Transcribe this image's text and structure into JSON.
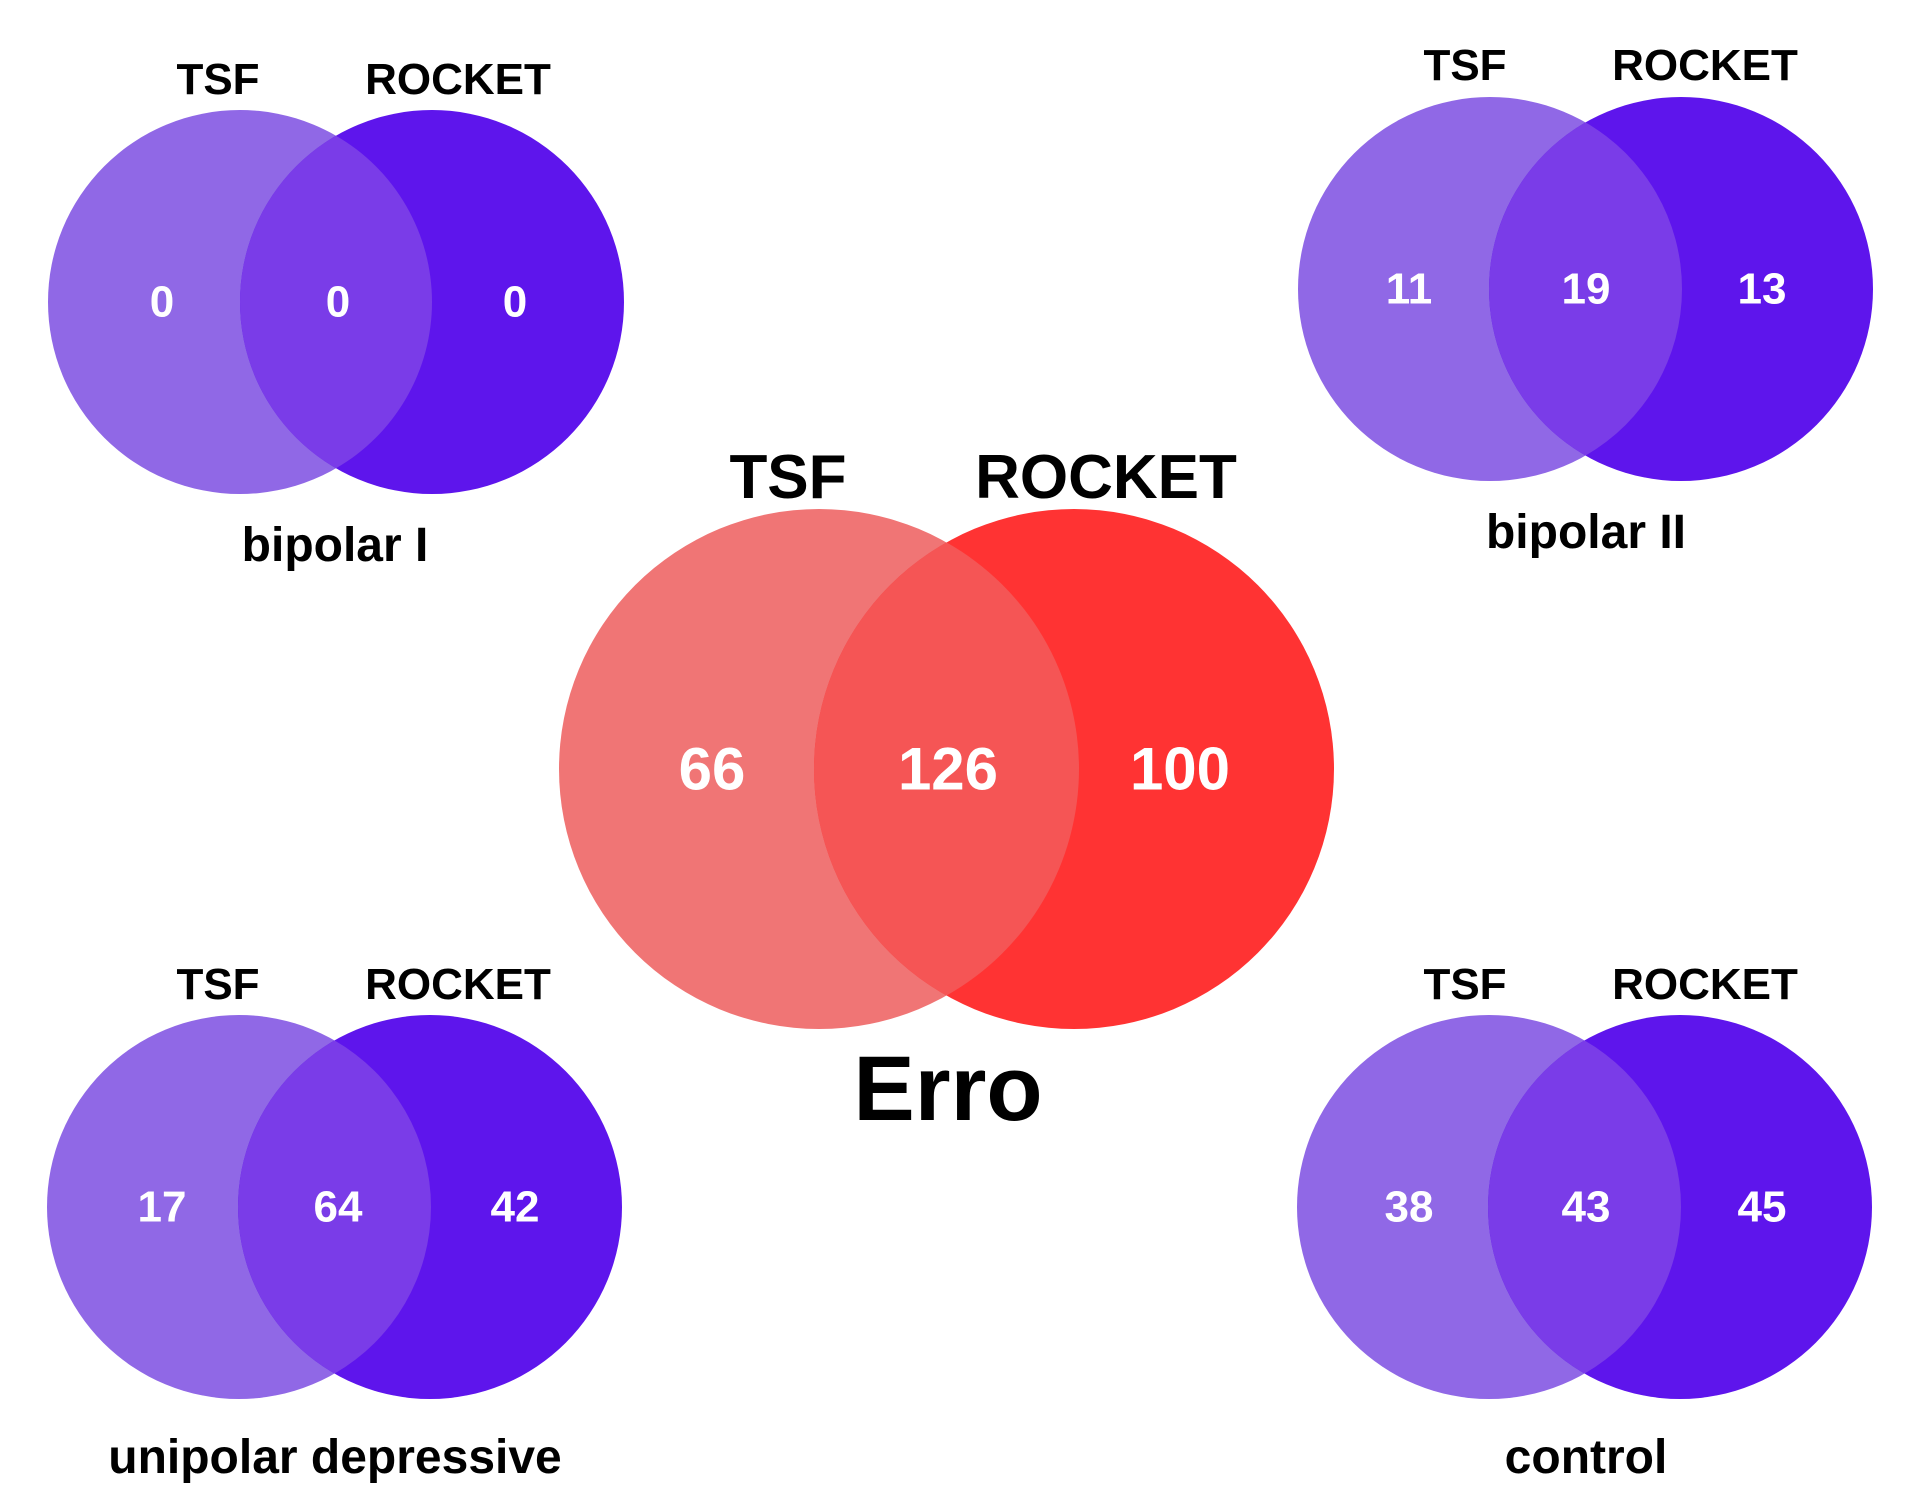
{
  "diagrams": [
    {
      "id": "bipolar-1",
      "title": "bipolar I",
      "set_a": "TSF",
      "set_b": "ROCKET",
      "only_a": "0",
      "both": "0",
      "only_b": "0",
      "colors": {
        "a": "#9068e6",
        "overlap": "#7a3ce8",
        "b": "#5e15ec"
      }
    },
    {
      "id": "bipolar-2",
      "title": "bipolar II",
      "set_a": "TSF",
      "set_b": "ROCKET",
      "only_a": "11",
      "both": "19",
      "only_b": "13",
      "colors": {
        "a": "#9068e6",
        "overlap": "#7a3ce8",
        "b": "#5e15ec"
      }
    },
    {
      "id": "erro",
      "title": "Erro",
      "set_a": "TSF",
      "set_b": "ROCKET",
      "only_a": "66",
      "both": "126",
      "only_b": "100",
      "colors": {
        "a": "#f07575",
        "overlap": "#f55555",
        "b": "#ff3333"
      }
    },
    {
      "id": "unipolar",
      "title": "unipolar depressive",
      "set_a": "TSF",
      "set_b": "ROCKET",
      "only_a": "17",
      "both": "64",
      "only_b": "42",
      "colors": {
        "a": "#9068e6",
        "overlap": "#7a3ce8",
        "b": "#5e15ec"
      }
    },
    {
      "id": "control",
      "title": "control",
      "set_a": "TSF",
      "set_b": "ROCKET",
      "only_a": "38",
      "both": "43",
      "only_b": "45",
      "colors": {
        "a": "#9068e6",
        "overlap": "#7a3ce8",
        "b": "#5e15ec"
      }
    }
  ]
}
